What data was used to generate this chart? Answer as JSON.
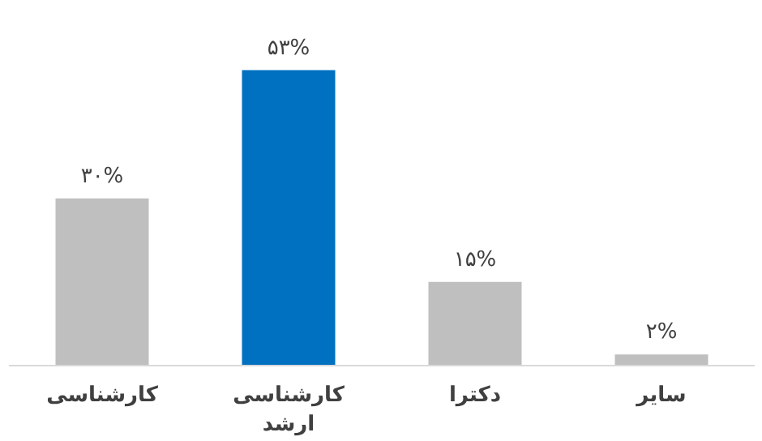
{
  "chart_data": {
    "type": "bar",
    "categories": [
      "کارشناسی",
      "کارشناسی ارشد",
      "دکترا",
      "سایر"
    ],
    "values": [
      30,
      53,
      15,
      2
    ],
    "colors": [
      "#bfbfbf",
      "#0070c0",
      "#bfbfbf",
      "#bfbfbf"
    ],
    "value_labels": [
      "۳۰%",
      "۵۳%",
      "۱۵%",
      "۲%"
    ],
    "grid": false
  }
}
